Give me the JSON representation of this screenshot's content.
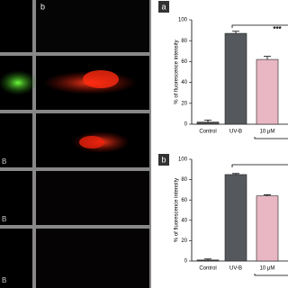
{
  "figure": {
    "column_label": "b",
    "row_labels": [
      "B",
      "B",
      "B"
    ]
  },
  "chart_data": [
    {
      "type": "bar",
      "panel_label": "a",
      "y_label": "% of fluorescence intensity",
      "categories": [
        "Control",
        "UV-B",
        "10 μM"
      ],
      "values": [
        2,
        87,
        62
      ],
      "errors": [
        2,
        2,
        3
      ],
      "colors": [
        "#4a4a4a",
        "#55595e",
        "#e8b7c3"
      ],
      "significance": "***",
      "ylim": [
        0,
        100
      ],
      "yticks": [
        0,
        20,
        40,
        60,
        80,
        100
      ]
    },
    {
      "type": "bar",
      "panel_label": "b",
      "y_label": "% of fluorescence intensity",
      "categories": [
        "Control",
        "UV-B",
        "10 μM"
      ],
      "values": [
        1,
        85,
        64
      ],
      "errors": [
        1,
        1,
        1
      ],
      "colors": [
        "#4a4a4a",
        "#55595e",
        "#e8b7c3"
      ],
      "ylim": [
        0,
        100
      ],
      "yticks": [
        0,
        20,
        40,
        60,
        80,
        100
      ]
    }
  ]
}
